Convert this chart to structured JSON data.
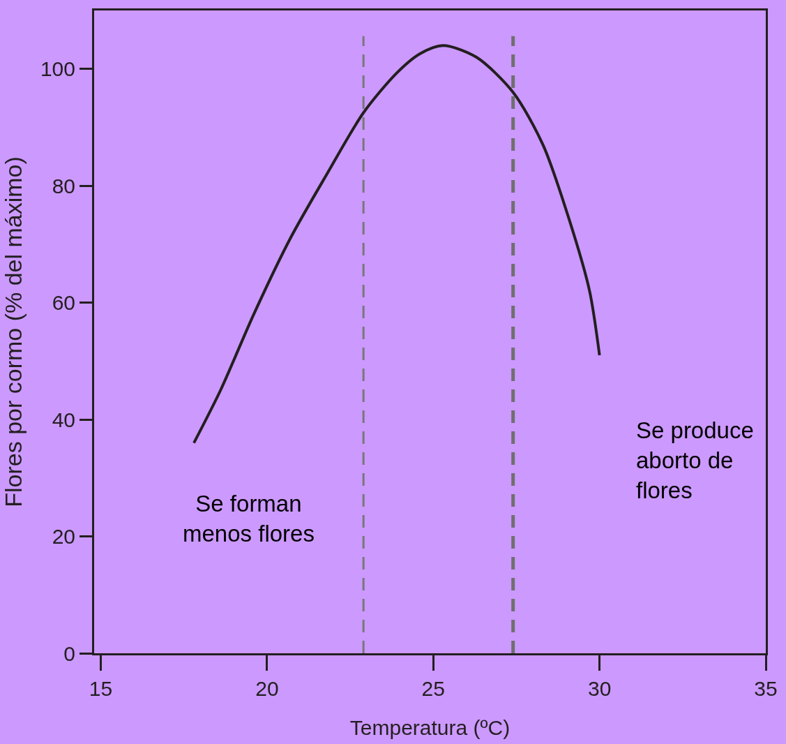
{
  "chart_data": {
    "type": "line",
    "xlabel": "Temperatura (ºC)",
    "ylabel": "Flores por cormo (% del máximo)",
    "x": [
      17.8,
      18.6,
      19.6,
      20.7,
      21.8,
      22.9,
      23.9,
      24.6,
      25.3,
      26.3,
      27.4,
      28.3,
      29.1,
      29.7,
      30.0
    ],
    "series": [
      {
        "color": "#231f20",
        "values": [
          36,
          45,
          58,
          71,
          82,
          92.5,
          99.3,
          102.6,
          104,
          102,
          96,
          87,
          74,
          62,
          51
        ]
      }
    ],
    "xlim": [
      14.8,
      35
    ],
    "ylim": [
      0,
      110
    ],
    "xticks": [
      15,
      20,
      25,
      30,
      35
    ],
    "yticks": [
      0,
      20,
      40,
      60,
      80,
      100
    ],
    "grid": false,
    "marker": "none",
    "line_style": "solid",
    "ref_lines": [
      {
        "axis": "x",
        "value": 22.9,
        "color": "#777777",
        "line_style": "dashed"
      },
      {
        "axis": "x",
        "value": 27.4,
        "color": "#6f6f6f",
        "line_style": "dashed"
      }
    ],
    "annotations": [
      "Se forman\nmenos flores",
      "Se produce\naborto de\nflores"
    ]
  }
}
